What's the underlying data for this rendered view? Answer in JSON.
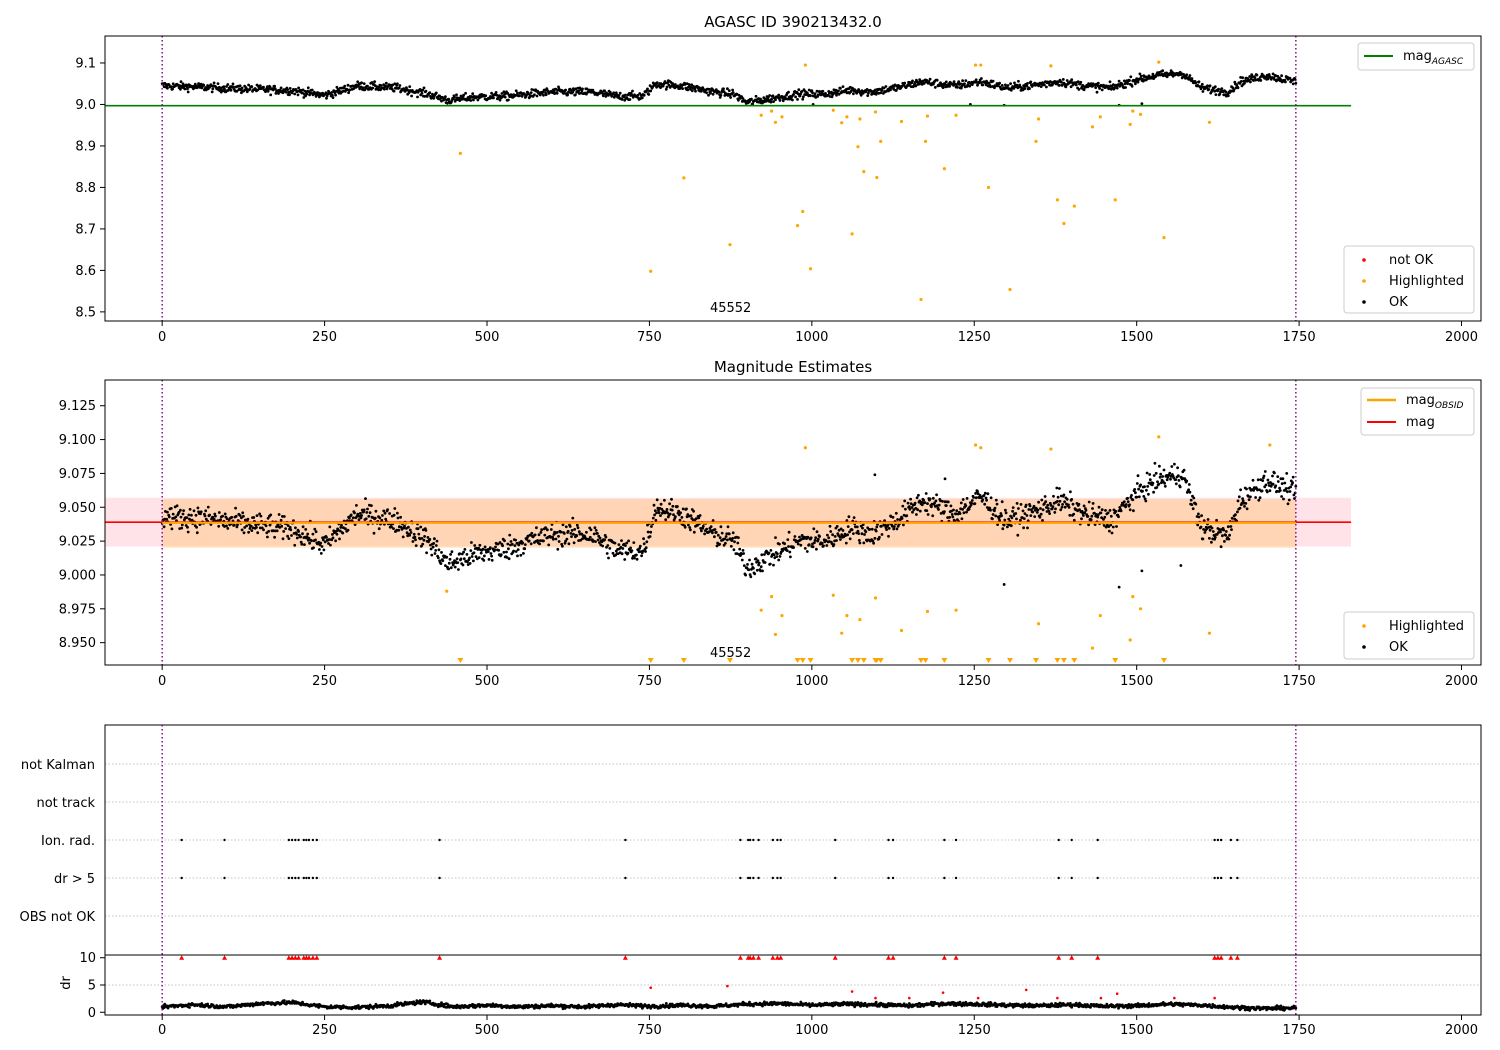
{
  "chart_data": [
    {
      "type": "scatter",
      "title": "AGASC ID 390213432.0",
      "xlim": [
        -88,
        2030
      ],
      "ylim": [
        8.478,
        9.165
      ],
      "x_ticks": [
        "0",
        "250",
        "500",
        "750",
        "1000",
        "1250",
        "1500",
        "1750",
        "2000"
      ],
      "y_ticks": [
        "8.5",
        "8.6",
        "8.7",
        "8.8",
        "8.9",
        "9.0",
        "9.1"
      ],
      "obsid_label": "45552",
      "obsid_label_x": 875,
      "vlines_x": [
        0,
        1745
      ],
      "hlines": [
        {
          "name": "mag_AGASC",
          "y": 8.997,
          "x_end": 1830,
          "color": "#008000"
        }
      ],
      "legend_lines": [
        {
          "text": "mag",
          "sub": "AGASC",
          "color": "#008000"
        }
      ],
      "legend_points": [
        {
          "text": "not OK",
          "color": "#ff0000"
        },
        {
          "text": "Highlighted",
          "color": "#ffa500"
        },
        {
          "text": "OK",
          "color": "#000000"
        }
      ],
      "ok_trend": [
        [
          0,
          9.045
        ],
        [
          60,
          9.042
        ],
        [
          120,
          9.038
        ],
        [
          200,
          9.034
        ],
        [
          250,
          9.022
        ],
        [
          300,
          9.045
        ],
        [
          360,
          9.04
        ],
        [
          410,
          9.025
        ],
        [
          440,
          9.01
        ],
        [
          480,
          9.018
        ],
        [
          530,
          9.02
        ],
        [
          600,
          9.03
        ],
        [
          660,
          9.03
        ],
        [
          700,
          9.02
        ],
        [
          740,
          9.02
        ],
        [
          760,
          9.05
        ],
        [
          800,
          9.045
        ],
        [
          850,
          9.03
        ],
        [
          880,
          9.025
        ],
        [
          900,
          9.005
        ],
        [
          940,
          9.015
        ],
        [
          980,
          9.025
        ],
        [
          1020,
          9.025
        ],
        [
          1060,
          9.035
        ],
        [
          1090,
          9.03
        ],
        [
          1130,
          9.04
        ],
        [
          1170,
          9.055
        ],
        [
          1220,
          9.045
        ],
        [
          1260,
          9.055
        ],
        [
          1300,
          9.04
        ],
        [
          1350,
          9.048
        ],
        [
          1380,
          9.055
        ],
        [
          1420,
          9.045
        ],
        [
          1460,
          9.04
        ],
        [
          1500,
          9.06
        ],
        [
          1530,
          9.07
        ],
        [
          1570,
          9.075
        ],
        [
          1600,
          9.04
        ],
        [
          1640,
          9.03
        ],
        [
          1660,
          9.055
        ],
        [
          1700,
          9.07
        ],
        [
          1745,
          9.055
        ]
      ],
      "ok_noise": 0.009,
      "ok_outliers": [
        [
          1002,
          9.0
        ],
        [
          1244,
          9.0
        ],
        [
          1296,
          8.998
        ],
        [
          1473,
          8.998
        ],
        [
          1508,
          9.002
        ]
      ],
      "highlighted": [
        [
          459,
          8.882
        ],
        [
          752,
          8.598
        ],
        [
          803,
          8.823
        ],
        [
          874,
          8.662
        ],
        [
          922,
          8.974
        ],
        [
          938,
          8.984
        ],
        [
          944,
          8.957
        ],
        [
          954,
          8.97
        ],
        [
          978,
          8.708
        ],
        [
          986,
          8.742
        ],
        [
          990,
          9.095
        ],
        [
          998,
          8.604
        ],
        [
          1033,
          8.986
        ],
        [
          1046,
          8.956
        ],
        [
          1054,
          8.97
        ],
        [
          1062,
          8.688
        ],
        [
          1071,
          8.898
        ],
        [
          1074,
          8.965
        ],
        [
          1080,
          8.838
        ],
        [
          1098,
          8.982
        ],
        [
          1100,
          8.824
        ],
        [
          1106,
          8.911
        ],
        [
          1138,
          8.959
        ],
        [
          1168,
          8.53
        ],
        [
          1175,
          8.911
        ],
        [
          1178,
          8.972
        ],
        [
          1204,
          8.845
        ],
        [
          1222,
          8.974
        ],
        [
          1252,
          9.095
        ],
        [
          1260,
          9.095
        ],
        [
          1272,
          8.8
        ],
        [
          1305,
          8.554
        ],
        [
          1345,
          8.911
        ],
        [
          1349,
          8.965
        ],
        [
          1368,
          9.093
        ],
        [
          1378,
          8.77
        ],
        [
          1388,
          8.713
        ],
        [
          1404,
          8.755
        ],
        [
          1432,
          8.946
        ],
        [
          1444,
          8.97
        ],
        [
          1467,
          8.77
        ],
        [
          1490,
          8.952
        ],
        [
          1494,
          8.984
        ],
        [
          1506,
          8.976
        ],
        [
          1534,
          9.102
        ],
        [
          1542,
          8.679
        ],
        [
          1612,
          8.957
        ]
      ]
    },
    {
      "type": "scatter",
      "title": "Magnitude Estimates",
      "xlim": [
        -88,
        2030
      ],
      "ylim": [
        8.9335,
        9.144
      ],
      "x_ticks": [
        "0",
        "250",
        "500",
        "750",
        "1000",
        "1250",
        "1500",
        "1750",
        "2000"
      ],
      "y_ticks": [
        "8.950",
        "8.975",
        "9.000",
        "9.025",
        "9.050",
        "9.075",
        "9.100",
        "9.125"
      ],
      "obsid_label": "45552",
      "obsid_label_x": 875,
      "vlines_x": [
        0,
        1745
      ],
      "mag": 9.039,
      "mag_band": [
        9.021,
        9.057
      ],
      "mag_span": [
        -88,
        1830
      ],
      "mag_obsid": 9.0385,
      "obsid_band": [
        9.02,
        9.056
      ],
      "obsid_span": [
        0,
        1745
      ],
      "legend_lines": [
        {
          "text": "mag",
          "sub": "OBSID",
          "color": "#ffa500"
        },
        {
          "text": "mag",
          "sub": "",
          "color": "#ff0000"
        }
      ],
      "legend_points": [
        {
          "text": "Highlighted",
          "color": "#ffa500"
        },
        {
          "text": "OK",
          "color": "#000000"
        }
      ],
      "ok_trend": [
        [
          0,
          9.043
        ],
        [
          60,
          9.042
        ],
        [
          120,
          9.038
        ],
        [
          200,
          9.034
        ],
        [
          250,
          9.022
        ],
        [
          300,
          9.045
        ],
        [
          360,
          9.04
        ],
        [
          410,
          9.025
        ],
        [
          440,
          9.008
        ],
        [
          480,
          9.015
        ],
        [
          530,
          9.02
        ],
        [
          600,
          9.03
        ],
        [
          660,
          9.03
        ],
        [
          700,
          9.018
        ],
        [
          740,
          9.018
        ],
        [
          760,
          9.05
        ],
        [
          800,
          9.045
        ],
        [
          850,
          9.03
        ],
        [
          880,
          9.025
        ],
        [
          900,
          9.005
        ],
        [
          940,
          9.015
        ],
        [
          980,
          9.025
        ],
        [
          1020,
          9.025
        ],
        [
          1060,
          9.035
        ],
        [
          1090,
          9.03
        ],
        [
          1130,
          9.04
        ],
        [
          1170,
          9.055
        ],
        [
          1220,
          9.045
        ],
        [
          1260,
          9.058
        ],
        [
          1300,
          9.04
        ],
        [
          1350,
          9.048
        ],
        [
          1380,
          9.055
        ],
        [
          1420,
          9.045
        ],
        [
          1460,
          9.04
        ],
        [
          1500,
          9.06
        ],
        [
          1530,
          9.07
        ],
        [
          1570,
          9.075
        ],
        [
          1600,
          9.035
        ],
        [
          1640,
          9.028
        ],
        [
          1660,
          9.055
        ],
        [
          1700,
          9.07
        ],
        [
          1745,
          9.06
        ]
      ],
      "ok_noise": 0.008,
      "ok_outliers": [
        [
          1097,
          9.074
        ],
        [
          1205,
          9.071
        ],
        [
          1296,
          8.993
        ],
        [
          1473,
          8.991
        ],
        [
          1508,
          9.003
        ],
        [
          1568,
          9.007
        ]
      ],
      "highlighted": [
        [
          438,
          8.988
        ],
        [
          922,
          8.974
        ],
        [
          938,
          8.984
        ],
        [
          944,
          8.956
        ],
        [
          954,
          8.97
        ],
        [
          990,
          9.094
        ],
        [
          1033,
          8.985
        ],
        [
          1046,
          8.957
        ],
        [
          1054,
          8.97
        ],
        [
          1074,
          8.967
        ],
        [
          1098,
          8.983
        ],
        [
          1138,
          8.959
        ],
        [
          1178,
          8.973
        ],
        [
          1222,
          8.974
        ],
        [
          1252,
          9.096
        ],
        [
          1260,
          9.094
        ],
        [
          1349,
          8.964
        ],
        [
          1368,
          9.093
        ],
        [
          1432,
          8.946
        ],
        [
          1444,
          8.97
        ],
        [
          1490,
          8.952
        ],
        [
          1494,
          8.984
        ],
        [
          1506,
          8.975
        ],
        [
          1534,
          9.102
        ],
        [
          1612,
          8.957
        ],
        [
          1705,
          9.096
        ]
      ],
      "below_axis_markers_x": [
        459,
        752,
        803,
        874,
        978,
        986,
        998,
        1062,
        1071,
        1080,
        1098,
        1100,
        1106,
        1168,
        1175,
        1204,
        1272,
        1305,
        1345,
        1378,
        1388,
        1404,
        1467,
        1542
      ]
    },
    {
      "type": "scatter",
      "title": "",
      "xlim": [
        -88,
        2030
      ],
      "x_ticks": [
        "0",
        "250",
        "500",
        "750",
        "1000",
        "1250",
        "1500",
        "1750",
        "2000"
      ],
      "flag_rows": [
        "not Kalman",
        "not track",
        "Ion. rad.",
        "dr > 5",
        "OBS not OK"
      ],
      "vlines_x": [
        0,
        1745
      ],
      "flag_points": {
        "Ion. rad.": [
          30,
          96,
          195,
          200,
          205,
          210,
          218,
          222,
          226,
          232,
          238,
          427,
          713,
          890,
          902,
          905,
          910,
          918,
          940,
          947,
          952,
          1036,
          1118,
          1125,
          1204,
          1222,
          1380,
          1400,
          1440,
          1620,
          1625,
          1630,
          1645,
          1655
        ],
        "dr > 5": [
          30,
          96,
          195,
          200,
          205,
          210,
          218,
          222,
          226,
          232,
          238,
          427,
          713,
          890,
          902,
          905,
          910,
          918,
          940,
          947,
          952,
          1036,
          1118,
          1125,
          1204,
          1222,
          1380,
          1400,
          1440,
          1620,
          1625,
          1630,
          1645,
          1655
        ]
      },
      "dr_ylabel": "dr",
      "dr_ylim": [
        -0.5,
        10.5
      ],
      "dr_ticks": [
        "0",
        "5",
        "10"
      ],
      "dr_cap": 10,
      "dr_capped_x": [
        30,
        96,
        195,
        200,
        205,
        210,
        218,
        222,
        226,
        232,
        238,
        427,
        713,
        890,
        902,
        905,
        910,
        918,
        940,
        947,
        952,
        1036,
        1118,
        1125,
        1204,
        1222,
        1380,
        1400,
        1440,
        1620,
        1625,
        1630,
        1645,
        1655
      ],
      "dr_trend": [
        [
          0,
          1.0
        ],
        [
          50,
          1.4
        ],
        [
          100,
          1.0
        ],
        [
          150,
          1.6
        ],
        [
          200,
          1.8
        ],
        [
          250,
          1.0
        ],
        [
          300,
          0.9
        ],
        [
          350,
          1.2
        ],
        [
          400,
          1.9
        ],
        [
          450,
          1.0
        ],
        [
          500,
          1.3
        ],
        [
          550,
          1.0
        ],
        [
          600,
          1.2
        ],
        [
          650,
          1.0
        ],
        [
          700,
          1.4
        ],
        [
          750,
          1.1
        ],
        [
          800,
          1.3
        ],
        [
          850,
          1.1
        ],
        [
          900,
          1.5
        ],
        [
          950,
          1.6
        ],
        [
          1000,
          1.3
        ],
        [
          1050,
          1.5
        ],
        [
          1100,
          1.4
        ],
        [
          1150,
          1.2
        ],
        [
          1200,
          1.6
        ],
        [
          1250,
          1.5
        ],
        [
          1300,
          1.3
        ],
        [
          1350,
          1.2
        ],
        [
          1400,
          1.4
        ],
        [
          1450,
          1.1
        ],
        [
          1500,
          1.2
        ],
        [
          1550,
          1.5
        ],
        [
          1600,
          1.3
        ],
        [
          1650,
          0.9
        ],
        [
          1700,
          0.7
        ],
        [
          1745,
          0.8
        ]
      ],
      "dr_noise": 0.35,
      "dr_red": [
        [
          752,
          4.5
        ],
        [
          870,
          4.8
        ],
        [
          1062,
          3.8
        ],
        [
          1098,
          2.6
        ],
        [
          1150,
          2.6
        ],
        [
          1202,
          3.6
        ],
        [
          1256,
          2.6
        ],
        [
          1330,
          4.1
        ],
        [
          1378,
          2.6
        ],
        [
          1445,
          2.6
        ],
        [
          1470,
          3.4
        ],
        [
          1558,
          2.6
        ],
        [
          1620,
          2.6
        ]
      ]
    }
  ]
}
